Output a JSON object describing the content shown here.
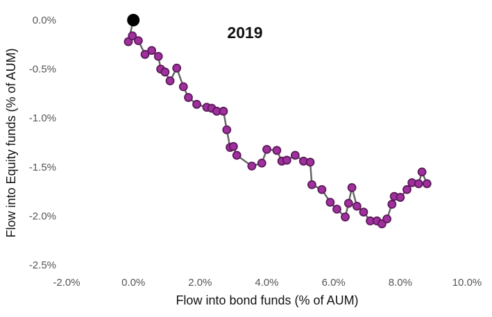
{
  "chart_data": {
    "type": "scatter",
    "title": "2019",
    "xlabel": "Flow into bond funds (% of AUM)",
    "ylabel": "Flow into Equity funds (% of AUM)",
    "xlim": [
      -2.0,
      10.0
    ],
    "ylim": [
      -2.5,
      0.0
    ],
    "x_ticks": [
      -2.0,
      0.0,
      2.0,
      4.0,
      6.0,
      8.0,
      10.0
    ],
    "x_tick_labels": [
      "-2.0%",
      "0.0%",
      "2.0%",
      "4.0%",
      "6.0%",
      "8.0%",
      "10.0%"
    ],
    "y_ticks": [
      0.0,
      -0.5,
      -1.0,
      -1.5,
      -2.0,
      -2.5
    ],
    "y_tick_labels": [
      "0.0%",
      "-0.5%",
      "-1.0%",
      "-1.5%",
      "-2.0%",
      "-2.5%"
    ],
    "grid": false,
    "legend": false,
    "line_color": "#666666",
    "marker_fill": "#a0309e",
    "marker_edge": "#5c1a5a",
    "start_marker_color": "#000000",
    "series": [
      {
        "x": [
          0.0,
          -0.15,
          -0.03,
          0.15,
          0.35,
          0.55,
          0.75,
          0.82,
          0.95,
          1.1,
          1.3,
          1.5,
          1.65,
          1.9,
          2.2,
          2.35,
          2.5,
          2.7,
          2.8,
          2.9,
          3.0,
          3.1,
          3.55,
          3.85,
          4.0,
          4.3,
          4.45,
          4.6,
          4.85,
          5.1,
          5.3,
          5.35,
          5.65,
          5.9,
          6.1,
          6.35,
          6.45,
          6.55,
          6.7,
          6.9,
          7.1,
          7.3,
          7.45,
          7.6,
          7.75,
          7.82,
          8.0,
          8.2,
          8.35,
          8.55,
          8.65,
          8.8
        ],
        "y": [
          0.0,
          -0.22,
          -0.16,
          -0.21,
          -0.35,
          -0.31,
          -0.37,
          -0.5,
          -0.53,
          -0.62,
          -0.49,
          -0.68,
          -0.79,
          -0.86,
          -0.89,
          -0.9,
          -0.93,
          -0.93,
          -1.12,
          -1.3,
          -1.29,
          -1.38,
          -1.49,
          -1.46,
          -1.32,
          -1.33,
          -1.44,
          -1.43,
          -1.38,
          -1.44,
          -1.45,
          -1.68,
          -1.73,
          -1.86,
          -1.93,
          -2.01,
          -1.87,
          -1.71,
          -1.9,
          -1.96,
          -2.05,
          -2.05,
          -2.08,
          -2.03,
          -1.88,
          -1.8,
          -1.81,
          -1.73,
          -1.66,
          -1.67,
          -1.55,
          -1.67
        ]
      }
    ]
  }
}
